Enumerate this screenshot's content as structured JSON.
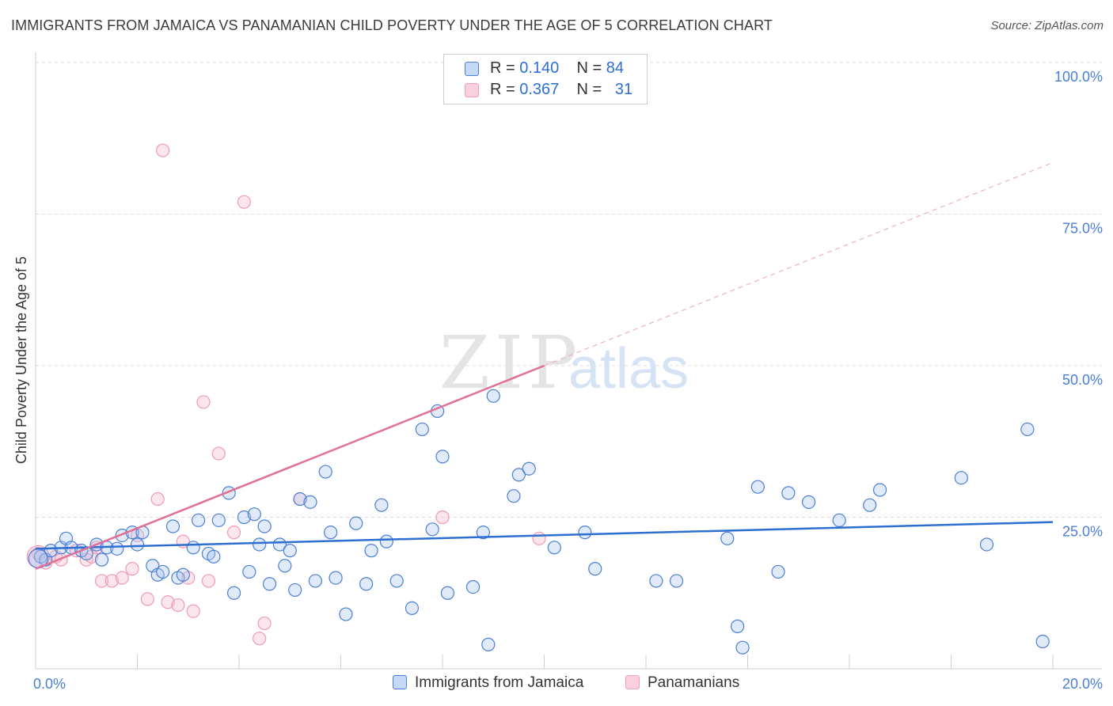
{
  "title": "IMMIGRANTS FROM JAMAICA VS PANAMANIAN CHILD POVERTY UNDER THE AGE OF 5 CORRELATION CHART",
  "source": "Source: ZipAtlas.com",
  "watermark": {
    "zip": "ZIP",
    "atlas": "atlas"
  },
  "legend": {
    "series1": {
      "r_label": "R = ",
      "r_value": "0.140",
      "n_label": "N = ",
      "n_value": "84"
    },
    "series2": {
      "r_label": "R = ",
      "r_value": "0.367",
      "n_label": "N = ",
      "n_value": "31"
    }
  },
  "colors": {
    "blue": "#4a7fd6",
    "blue_fill": "#a9c4ef",
    "pink": "#e07095",
    "pink_fill": "#f5b8cc",
    "grid": "#dddddd"
  },
  "chart_data": {
    "type": "scatter",
    "title": "IMMIGRANTS FROM JAMAICA VS PANAMANIAN CHILD POVERTY UNDER THE AGE OF 5 CORRELATION CHART",
    "xlabel": "",
    "ylabel": "Child Poverty Under the Age of 5",
    "xlim": [
      0,
      20
    ],
    "ylim": [
      0,
      100
    ],
    "x_tick_labels": [
      "0.0%",
      "20.0%"
    ],
    "y_tick_labels": [
      "100.0%",
      "75.0%",
      "50.0%",
      "25.0%"
    ],
    "y_tick_values": [
      100,
      75,
      50,
      25
    ],
    "legend_position": "top-center",
    "series": [
      {
        "name": "Immigrants from Jamaica",
        "color": "blue",
        "trend": {
          "x": [
            0,
            20
          ],
          "y": [
            19.8,
            24.2
          ],
          "dashed_to": null
        },
        "points": [
          [
            0.1,
            18.5
          ],
          [
            0.2,
            18
          ],
          [
            0.3,
            19.5
          ],
          [
            0.5,
            20
          ],
          [
            0.6,
            21.5
          ],
          [
            0.7,
            20
          ],
          [
            0.9,
            19.5
          ],
          [
            1.0,
            19
          ],
          [
            1.2,
            20.5
          ],
          [
            1.3,
            18
          ],
          [
            1.4,
            20
          ],
          [
            1.6,
            19.8
          ],
          [
            1.7,
            22
          ],
          [
            1.9,
            22.5
          ],
          [
            2.0,
            20.5
          ],
          [
            2.1,
            22.5
          ],
          [
            2.3,
            17
          ],
          [
            2.4,
            15.5
          ],
          [
            2.5,
            16
          ],
          [
            2.7,
            23.5
          ],
          [
            2.8,
            15
          ],
          [
            2.9,
            15.5
          ],
          [
            3.1,
            20
          ],
          [
            3.2,
            24.5
          ],
          [
            3.4,
            19
          ],
          [
            3.5,
            18.5
          ],
          [
            3.6,
            24.5
          ],
          [
            3.8,
            29
          ],
          [
            3.9,
            12.5
          ],
          [
            4.1,
            25
          ],
          [
            4.2,
            16
          ],
          [
            4.3,
            25.5
          ],
          [
            4.4,
            20.5
          ],
          [
            4.5,
            23.5
          ],
          [
            4.6,
            14
          ],
          [
            4.8,
            20.5
          ],
          [
            4.9,
            17
          ],
          [
            5.0,
            19.5
          ],
          [
            5.1,
            13
          ],
          [
            5.2,
            28
          ],
          [
            5.4,
            27.5
          ],
          [
            5.5,
            14.5
          ],
          [
            5.7,
            32.5
          ],
          [
            5.8,
            22.5
          ],
          [
            5.9,
            15
          ],
          [
            6.1,
            9
          ],
          [
            6.3,
            24
          ],
          [
            6.5,
            14
          ],
          [
            6.6,
            19.5
          ],
          [
            6.8,
            27
          ],
          [
            6.9,
            21
          ],
          [
            7.1,
            14.5
          ],
          [
            7.4,
            10
          ],
          [
            7.6,
            39.5
          ],
          [
            7.8,
            23
          ],
          [
            7.9,
            42.5
          ],
          [
            8.0,
            35
          ],
          [
            8.1,
            12.5
          ],
          [
            8.6,
            13.5
          ],
          [
            8.8,
            22.5
          ],
          [
            8.9,
            4
          ],
          [
            9.0,
            45
          ],
          [
            9.4,
            28.5
          ],
          [
            9.5,
            32
          ],
          [
            9.7,
            33
          ],
          [
            10.2,
            20
          ],
          [
            10.8,
            22.5
          ],
          [
            11.0,
            16.5
          ],
          [
            12.2,
            14.5
          ],
          [
            12.6,
            14.5
          ],
          [
            13.6,
            21.5
          ],
          [
            13.8,
            7
          ],
          [
            13.9,
            3.5
          ],
          [
            14.2,
            30
          ],
          [
            14.6,
            16
          ],
          [
            14.8,
            29
          ],
          [
            15.2,
            27.5
          ],
          [
            15.8,
            24.5
          ],
          [
            16.4,
            27
          ],
          [
            16.6,
            29.5
          ],
          [
            18.2,
            31.5
          ],
          [
            18.7,
            20.5
          ],
          [
            19.5,
            39.5
          ],
          [
            19.8,
            4.5
          ]
        ]
      },
      {
        "name": "Panamanians",
        "color": "pink",
        "trend": {
          "x": [
            0,
            10
          ],
          "y": [
            16.5,
            50
          ],
          "dashed_to": {
            "x": 20,
            "y": 83.5
          }
        },
        "points": [
          [
            0.05,
            19
          ],
          [
            0.2,
            17.5
          ],
          [
            0.4,
            18.5
          ],
          [
            0.5,
            18
          ],
          [
            0.8,
            19.5
          ],
          [
            1.0,
            18
          ],
          [
            1.1,
            18.5
          ],
          [
            1.2,
            20
          ],
          [
            1.3,
            14.5
          ],
          [
            1.5,
            14.5
          ],
          [
            1.7,
            15
          ],
          [
            1.9,
            16.5
          ],
          [
            2.0,
            22
          ],
          [
            2.2,
            11.5
          ],
          [
            2.4,
            28
          ],
          [
            2.5,
            85.5
          ],
          [
            2.6,
            11
          ],
          [
            2.8,
            10.5
          ],
          [
            2.9,
            21
          ],
          [
            3.0,
            15
          ],
          [
            3.1,
            9.5
          ],
          [
            3.3,
            44
          ],
          [
            3.4,
            14.5
          ],
          [
            3.6,
            35.5
          ],
          [
            4.1,
            77
          ],
          [
            4.4,
            5
          ],
          [
            4.5,
            7.5
          ],
          [
            5.2,
            28
          ],
          [
            8.0,
            25
          ],
          [
            9.9,
            21.5
          ],
          [
            3.9,
            22.5
          ]
        ]
      }
    ]
  },
  "bottom_legend": {
    "series1": "Immigrants from Jamaica",
    "series2": "Panamanians"
  }
}
